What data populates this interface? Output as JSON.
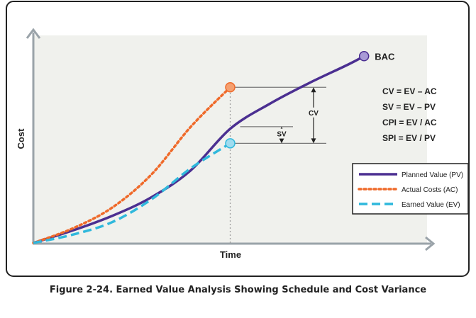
{
  "caption": "Figure 2-24. Earned Value Analysis Showing Schedule and Cost Variance",
  "colors": {
    "pv": "#4b2f91",
    "ac": "#ef6a2a",
    "ev": "#2fb8dc",
    "axis": "#9aa3a9",
    "plot_bg": "#f0f1ed",
    "frame": "#222222",
    "bac_marker": "#a99bd6",
    "ac_marker": "#f5a070",
    "ev_marker": "#9fdcef",
    "gray_line": "#777777"
  },
  "chart_data": {
    "type": "line",
    "xlabel": "Time",
    "ylabel": "Cost",
    "xlim": [
      0,
      100
    ],
    "ylim": [
      0,
      100
    ],
    "grid": false,
    "legend_position": "right",
    "series": [
      {
        "key": "pv",
        "name": "Planned Value (PV)",
        "style": "solid",
        "points": [
          [
            0,
            0
          ],
          [
            10,
            6
          ],
          [
            20,
            13
          ],
          [
            30,
            22
          ],
          [
            40,
            35
          ],
          [
            50,
            55
          ],
          [
            60,
            67
          ],
          [
            70,
            77
          ],
          [
            80,
            86
          ],
          [
            84,
            90
          ]
        ]
      },
      {
        "key": "ac",
        "name": "Actual Costs (AC)",
        "style": "dotted",
        "points": [
          [
            0,
            0
          ],
          [
            10,
            7
          ],
          [
            20,
            17
          ],
          [
            30,
            33
          ],
          [
            40,
            56
          ],
          [
            50,
            75
          ]
        ]
      },
      {
        "key": "ev",
        "name": "Earned Value (EV)",
        "style": "dashed",
        "points": [
          [
            0,
            0
          ],
          [
            10,
            4
          ],
          [
            20,
            10
          ],
          [
            30,
            21
          ],
          [
            40,
            36
          ],
          [
            50,
            48
          ]
        ]
      }
    ],
    "markers": [
      {
        "key": "bac",
        "label": "BAC",
        "x": 84,
        "y": 90
      },
      {
        "key": "ac_now",
        "label": "",
        "x": 50,
        "y": 75
      },
      {
        "key": "ev_now",
        "label": "",
        "x": 50,
        "y": 48
      }
    ],
    "status_date_x": 50,
    "annotations": {
      "cv_label": "CV",
      "sv_label": "SV"
    },
    "formulas": [
      "CV = EV – AC",
      "SV = EV – PV",
      "CPI = EV / AC",
      "SPI = EV / PV"
    ]
  }
}
